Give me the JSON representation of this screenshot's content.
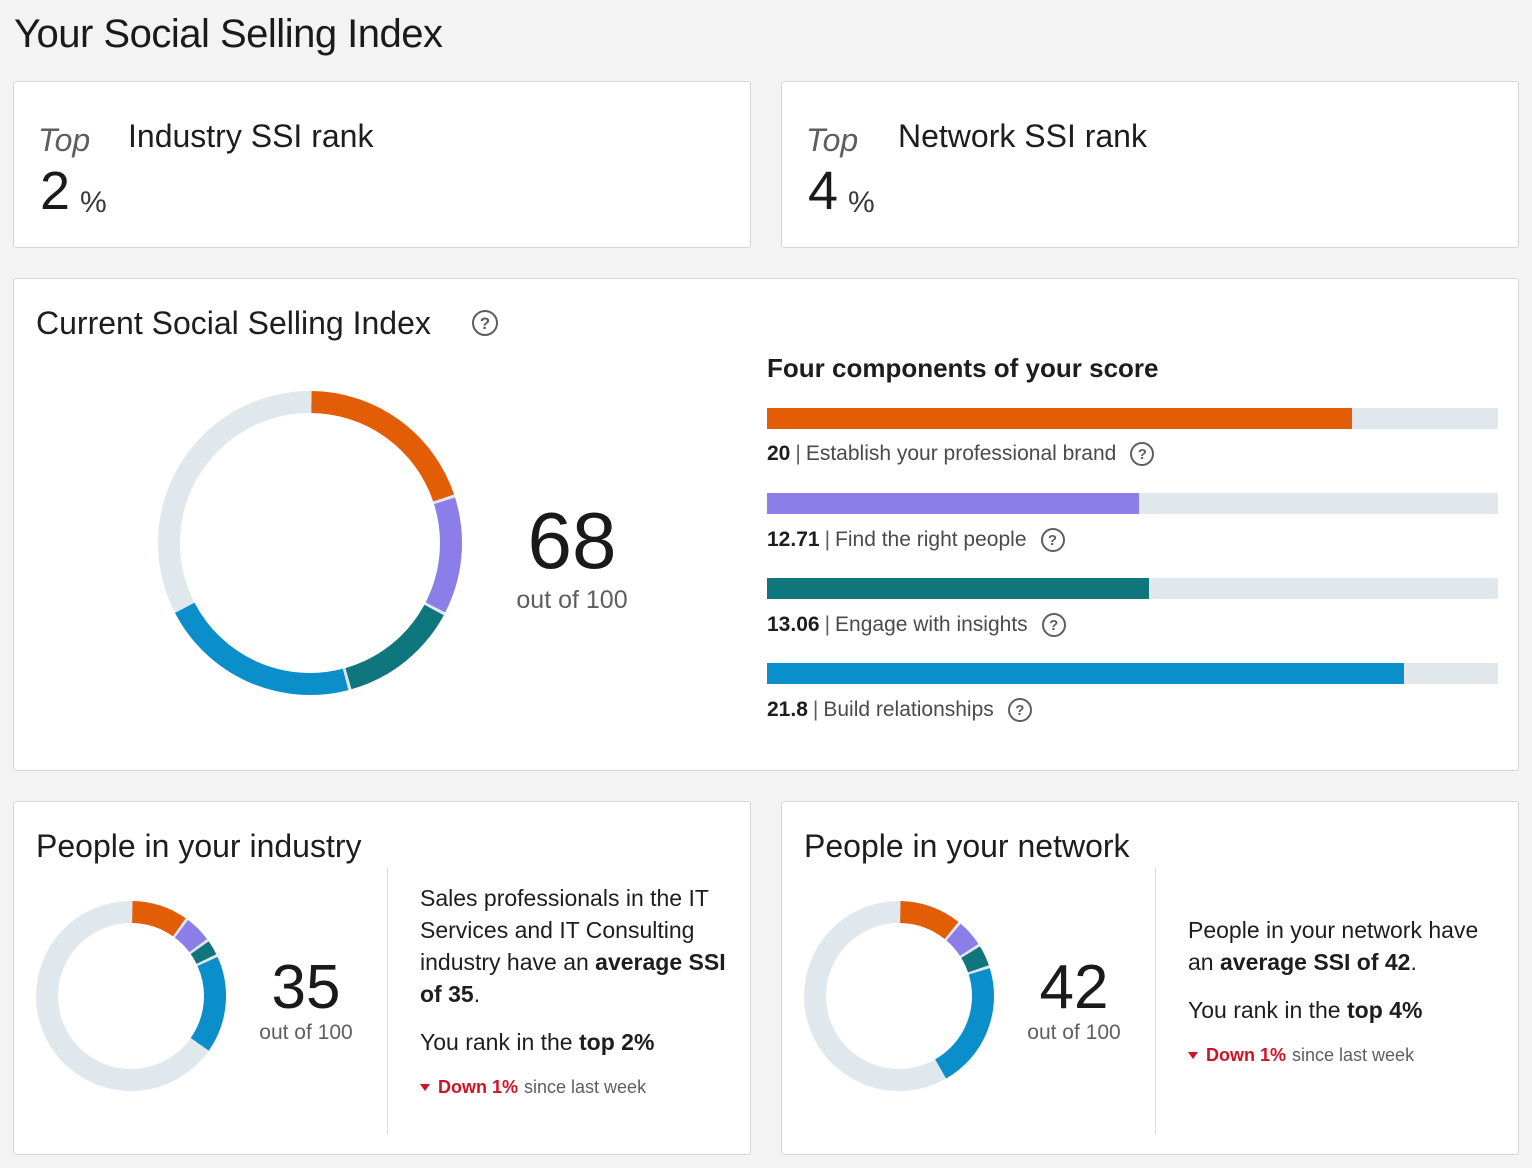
{
  "page": {
    "title": "Your Social Selling Index"
  },
  "industry_rank": {
    "top_label": "Top",
    "label": "Industry SSI rank",
    "value": "2",
    "unit": "%"
  },
  "network_rank": {
    "top_label": "Top",
    "label": "Network SSI rank",
    "value": "4",
    "unit": "%"
  },
  "current": {
    "title": "Current Social Selling Index",
    "score": "68",
    "out_of": "out of 100",
    "components_heading": "Four components of your score",
    "components": [
      {
        "value": "20",
        "label": "Establish your professional brand",
        "fraction": 0.8,
        "color": "#e35c06"
      },
      {
        "value": "12.71",
        "label": "Find the right people",
        "fraction": 0.5084,
        "color": "#8b7ee8"
      },
      {
        "value": "13.06",
        "label": "Engage with insights",
        "fraction": 0.5224,
        "color": "#10767e"
      },
      {
        "value": "21.8",
        "label": "Build relationships",
        "fraction": 0.872,
        "color": "#0a8fca"
      }
    ],
    "ring_values": [
      20,
      12.71,
      13.06,
      21.8
    ]
  },
  "industry_people": {
    "title": "People in your industry",
    "score": "35",
    "out_of": "out of 100",
    "desc_1": "Sales professionals in the IT Services and IT Consulting industry have an ",
    "desc_1_bold": "average SSI of 35",
    "desc_1_end": ".",
    "rank_text": "You rank in the ",
    "rank_bold": "top 2%",
    "trend_down": "Down 1%",
    "trend_rest": "since last week",
    "ring_values": [
      10,
      5,
      3,
      17
    ]
  },
  "network_people": {
    "title": "People in your network",
    "score": "42",
    "out_of": "out of 100",
    "desc_1": "People in your network have an ",
    "desc_1_bold": "average SSI of 42",
    "desc_1_end": ".",
    "rank_text": "You rank in the ",
    "rank_bold": "top 4%",
    "trend_down": "Down 1%",
    "trend_rest": "since last week",
    "ring_values": [
      11,
      5,
      4,
      22
    ]
  },
  "colors": {
    "brand": "#e35c06",
    "people": "#8b7ee8",
    "insights": "#10767e",
    "relationships": "#0a8fca",
    "track": "#e0e8ee",
    "down": "#d11124"
  }
}
